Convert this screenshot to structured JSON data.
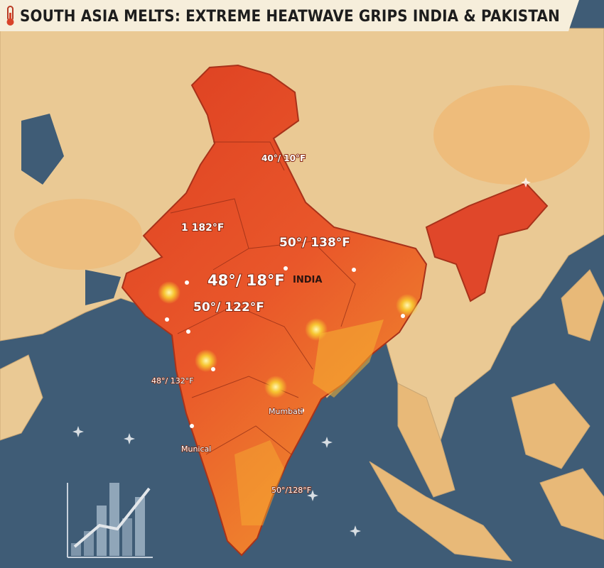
{
  "header": {
    "title": "SOUTH ASIA MELTS: EXTREME HEATWAVE GRIPS INDIA & PAKISTAN"
  },
  "map": {
    "labels": [
      "40°/ 10°F",
      "1 182°F",
      "50°/ 138°F",
      "48°/ 18°F",
      "INDIA",
      "50°/ 122°F",
      "48°/ 132°F",
      "Mumbati",
      "Munical",
      "50°/128°F"
    ]
  }
}
